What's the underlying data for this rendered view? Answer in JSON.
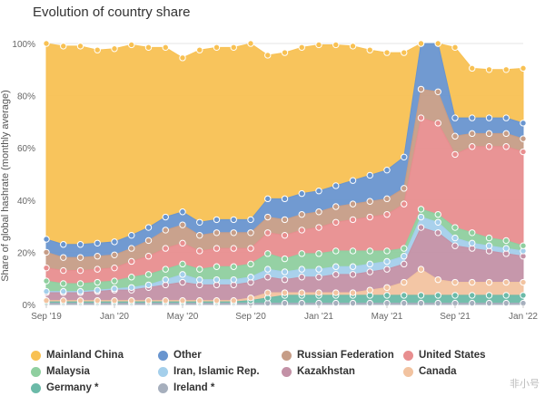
{
  "chart_data": {
    "type": "area",
    "title": "Evolution of country share",
    "ylabel": "Share of global hashrate (monthly average)",
    "ylim": [
      0,
      100
    ],
    "yticks": [
      "0%",
      "20%",
      "40%",
      "60%",
      "80%",
      "100%"
    ],
    "xticks": [
      "Sep '19",
      "Jan '20",
      "May '20",
      "Sep '20",
      "Jan '21",
      "May '21",
      "Sep '21",
      "Jan '22"
    ],
    "months": 29,
    "series": [
      {
        "name": "Ireland *",
        "color": "#a6afbd",
        "values": [
          0.5,
          0.5,
          0.5,
          0.5,
          0.5,
          0.5,
          0.5,
          0.5,
          0.5,
          0.5,
          0.5,
          0.5,
          0.5,
          0.5,
          0.5,
          0.5,
          0.5,
          0.5,
          0.5,
          0.5,
          0.5,
          0.5,
          0.5,
          0.5,
          0.5,
          0.5,
          0.5,
          0.5,
          0.5
        ]
      },
      {
        "name": "Germany *",
        "color": "#6bbaa8",
        "values": [
          0.5,
          0.5,
          0.5,
          0.5,
          0.5,
          0.5,
          0.5,
          0.5,
          0.5,
          0.5,
          0.5,
          0.5,
          1,
          2,
          3,
          3,
          3,
          3,
          3,
          3,
          3,
          3,
          3,
          3,
          3,
          3,
          3,
          3,
          3
        ]
      },
      {
        "name": "Canada",
        "color": "#f2c3a0",
        "values": [
          0.5,
          0.5,
          0.5,
          0.5,
          0.5,
          0.5,
          0.5,
          0.5,
          0.5,
          0.5,
          0.5,
          0.5,
          1,
          2,
          1,
          1,
          1,
          1,
          1,
          2,
          3,
          5,
          10,
          6,
          5,
          5,
          5,
          5,
          5
        ]
      },
      {
        "name": "Kazakhstan",
        "color": "#c391a6",
        "values": [
          3,
          3,
          3,
          3.5,
          4,
          4,
          5,
          6,
          7,
          6,
          6,
          6,
          6,
          6,
          5,
          6,
          6,
          7,
          7,
          7,
          7,
          7,
          16,
          18,
          14,
          13,
          12,
          11,
          10
        ]
      },
      {
        "name": "Iran, Islamic Rep.",
        "color": "#a4cfeb",
        "values": [
          0.5,
          0.5,
          0.5,
          0.5,
          0.5,
          1,
          1,
          2,
          3,
          2,
          2,
          2,
          2,
          3,
          3,
          3,
          3,
          3,
          3,
          3,
          3,
          3,
          4,
          4,
          3,
          2,
          2,
          2,
          2
        ]
      },
      {
        "name": "Malaysia",
        "color": "#8fcf9f",
        "values": [
          4,
          3,
          3,
          3,
          3,
          4,
          4,
          4,
          4,
          4,
          5,
          5,
          5,
          6,
          5,
          6,
          6,
          6,
          6,
          5,
          4,
          3,
          3,
          3,
          4,
          4,
          3,
          3,
          2
        ]
      },
      {
        "name": "United States",
        "color": "#e88e8f",
        "values": [
          5,
          5,
          5,
          5,
          5,
          6,
          7,
          8,
          8,
          7,
          7,
          7,
          6,
          8,
          9,
          9,
          10,
          11,
          12,
          13,
          14,
          17,
          35,
          35,
          28,
          33,
          35,
          36,
          36
        ]
      },
      {
        "name": "Russian Federation",
        "color": "#c69d87",
        "values": [
          6,
          5,
          5,
          5,
          5,
          5,
          6,
          7,
          7,
          6,
          6,
          6,
          6,
          6,
          6,
          6,
          6,
          6,
          6,
          6,
          6,
          6,
          11,
          12,
          7,
          5,
          5,
          5,
          5
        ]
      },
      {
        "name": "Other",
        "color": "#6995cf",
        "values": [
          5,
          5,
          5,
          5,
          5,
          5,
          5,
          5,
          5,
          5,
          5,
          5,
          5,
          7,
          8,
          8,
          8,
          8,
          9,
          10,
          11,
          12,
          20,
          20,
          7,
          6,
          6,
          6,
          6
        ]
      },
      {
        "name": "Mainland China",
        "color": "#f8c153",
        "values": [
          75,
          76,
          76,
          74,
          74,
          73,
          69,
          65,
          59,
          66,
          66,
          66,
          67.5,
          55,
          56,
          56,
          56,
          54,
          51.5,
          48,
          45,
          40,
          0,
          0,
          27,
          19,
          18.5,
          18.5,
          21
        ]
      }
    ]
  },
  "legend_order": [
    "Mainland China",
    "Other",
    "Russian Federation",
    "United States",
    "Malaysia",
    "Iran, Islamic Rep.",
    "Kazakhstan",
    "Canada",
    "Germany *",
    "Ireland *"
  ],
  "watermark": "非小号"
}
